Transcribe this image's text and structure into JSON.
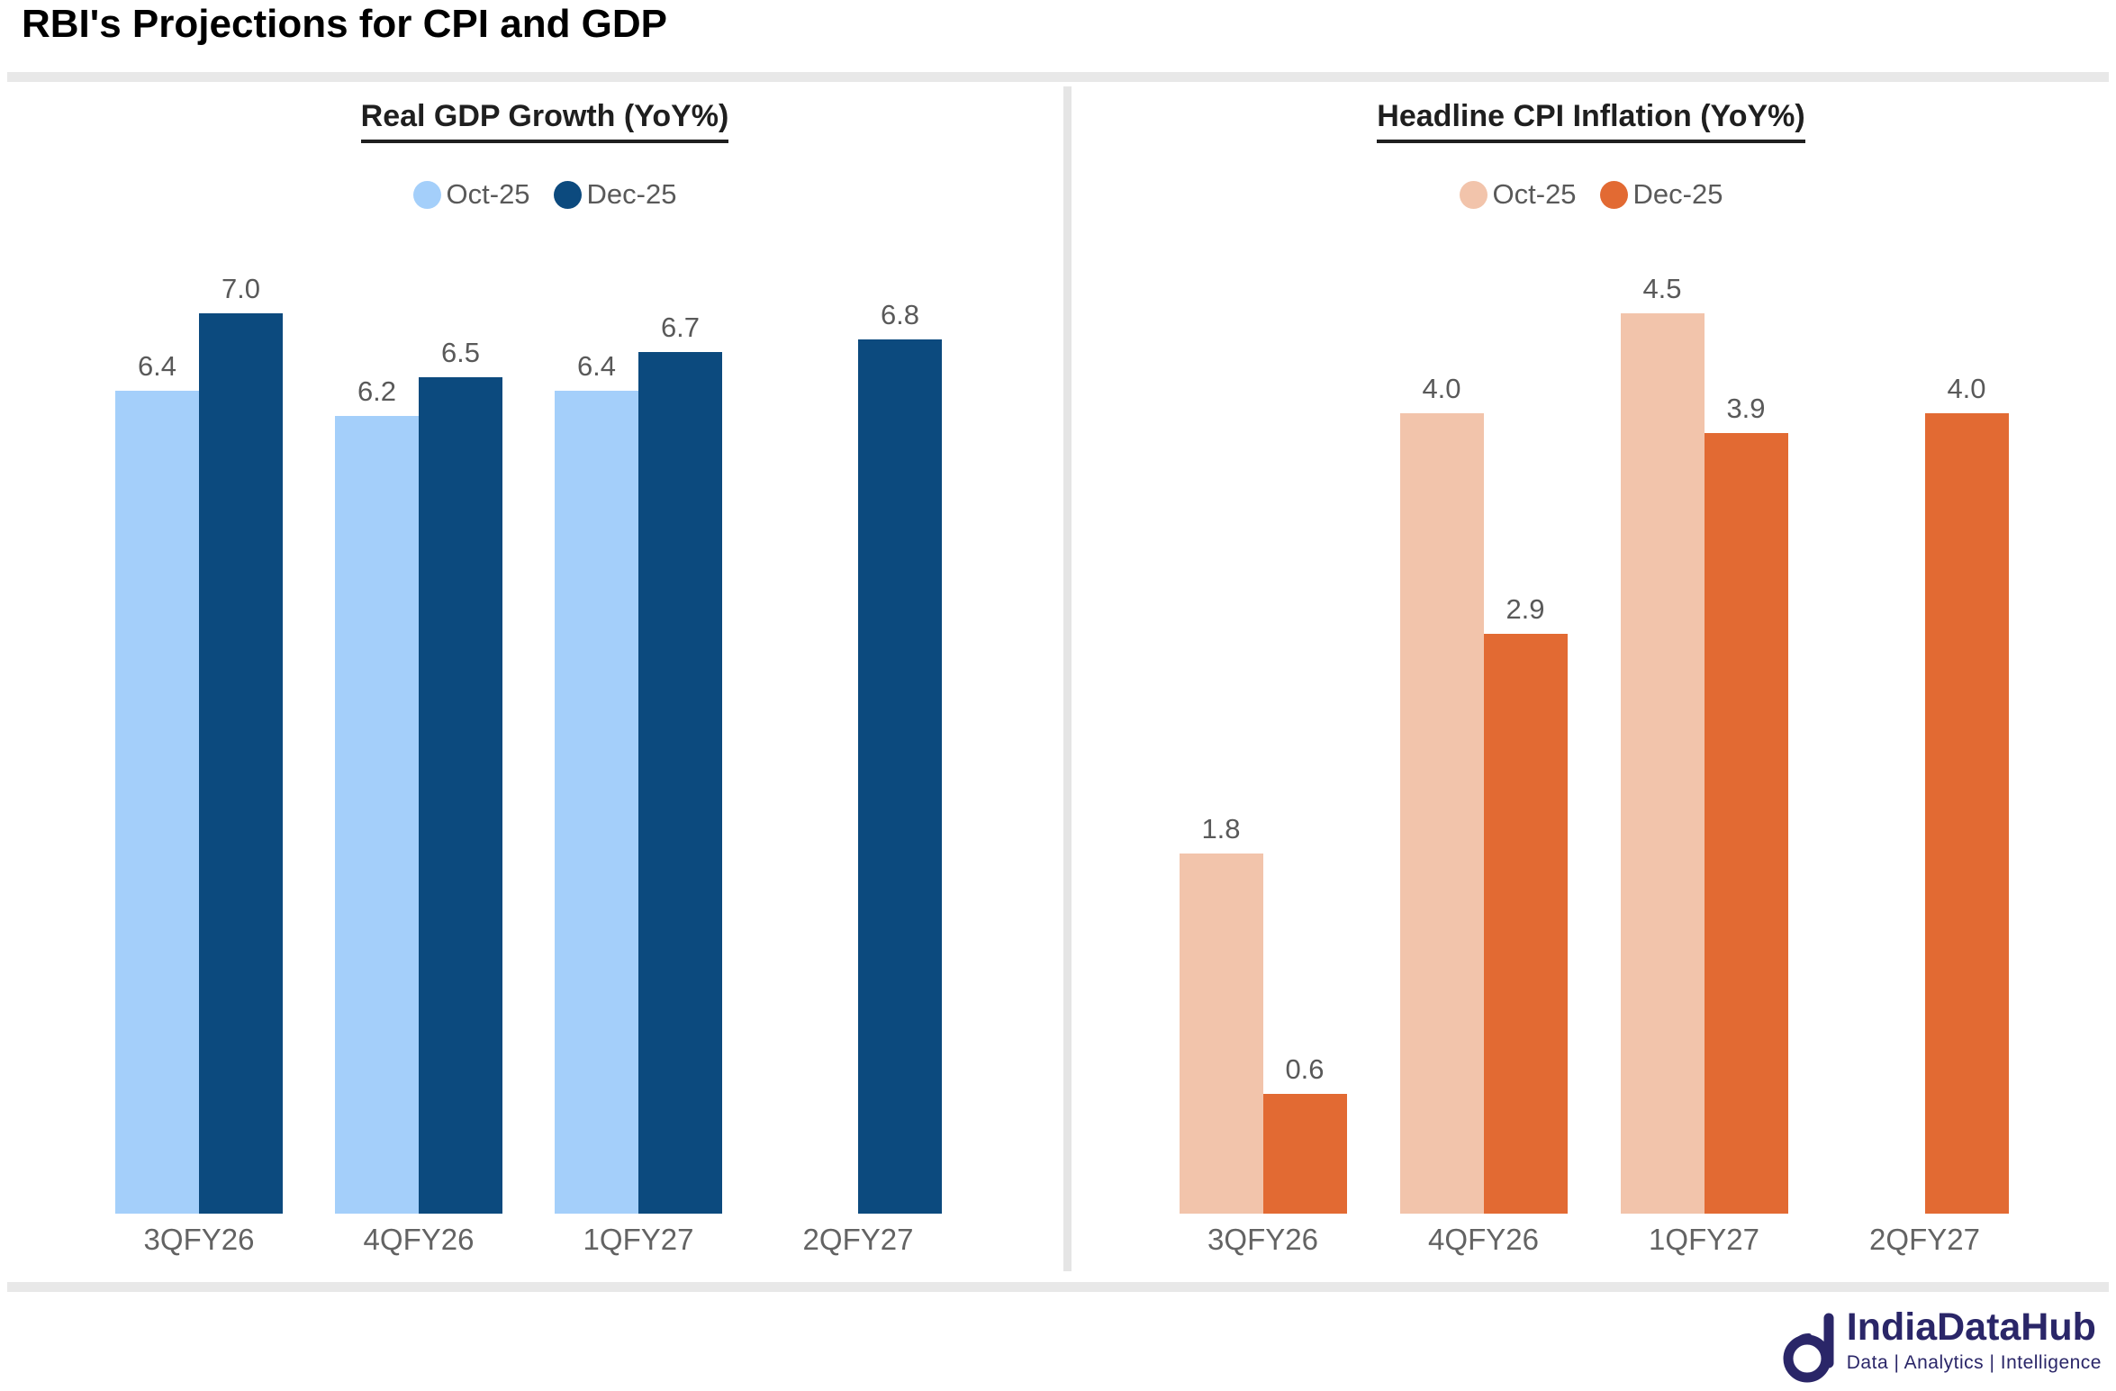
{
  "page_title": "RBI's Projections for CPI and GDP",
  "chart_data": [
    {
      "type": "bar",
      "title": "Real GDP Growth (YoY%)",
      "categories": [
        "3QFY26",
        "4QFY26",
        "1QFY27",
        "2QFY27"
      ],
      "series": [
        {
          "name": "Oct-25",
          "color": "#A4CFFA",
          "values": [
            6.4,
            6.2,
            6.4,
            null
          ]
        },
        {
          "name": "Dec-25",
          "color": "#0C4A7E",
          "values": [
            7.0,
            6.5,
            6.7,
            6.8
          ]
        }
      ],
      "ylim": [
        0,
        7.0
      ],
      "grid": false,
      "value_labels": true,
      "legend_position": "top"
    },
    {
      "type": "bar",
      "title": "Headline CPI Inflation (YoY%)",
      "categories": [
        "3QFY26",
        "4QFY26",
        "1QFY27",
        "2QFY27"
      ],
      "series": [
        {
          "name": "Oct-25",
          "color": "#F2C4AB",
          "values": [
            1.8,
            4.0,
            4.5,
            null
          ]
        },
        {
          "name": "Dec-25",
          "color": "#E26A33",
          "values": [
            0.6,
            2.9,
            3.9,
            4.0
          ]
        }
      ],
      "ylim": [
        0,
        4.5
      ],
      "grid": false,
      "value_labels": true,
      "legend_position": "top"
    }
  ],
  "footer": {
    "brand": "IndiaDataHub",
    "tagline": "Data | Analytics | Intelligence",
    "brand_color": "#2A2668"
  }
}
